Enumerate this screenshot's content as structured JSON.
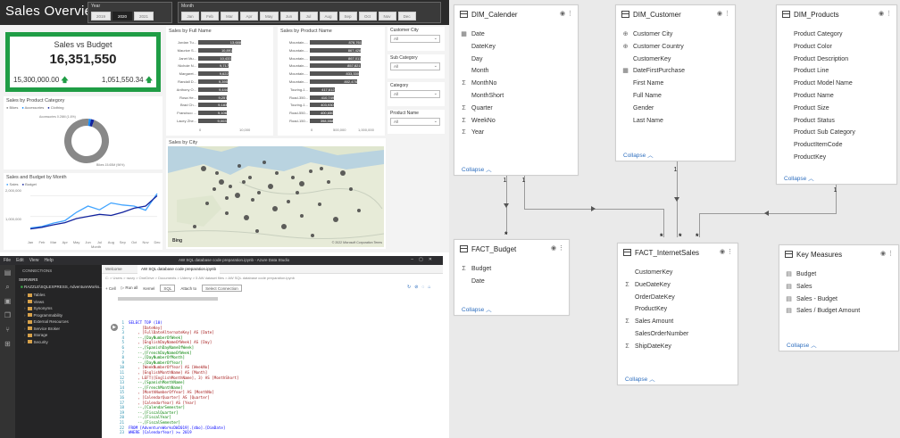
{
  "report": {
    "title": "Sales Overview",
    "year_slicer": {
      "label": "Year",
      "options": [
        "2019",
        "2020",
        "2021"
      ],
      "selected": "2020"
    },
    "month_slicer": {
      "label": "Month",
      "options": [
        "Jan",
        "Feb",
        "Mar",
        "Apr",
        "May",
        "Jun",
        "Jul",
        "Aug",
        "Sep",
        "Oct",
        "Nov",
        "Dec"
      ]
    },
    "kpi": {
      "title": "Sales vs Budget",
      "value": "16,351,550",
      "left": "15,300,000.00",
      "right": "1,051,550.34"
    },
    "sales_by_full_name": {
      "title": "Sales by Full Name",
      "axis_label": "Full Name",
      "rows": [
        {
          "label": "Jordan Tu...",
          "value": "13,688"
        },
        {
          "label": "Maurice S...",
          "value": "10,891"
        },
        {
          "label": "Janet Mu...",
          "value": "10,433"
        },
        {
          "label": "Nichole N...",
          "value": "9,717"
        },
        {
          "label": "Margaret...",
          "value": "9,622"
        },
        {
          "label": "Randall D...",
          "value": "9,395"
        },
        {
          "label": "Anthony O...",
          "value": "9,444"
        },
        {
          "label": "Rosa He...",
          "value": "9,257"
        },
        {
          "label": "Brad Ch...",
          "value": "9,183"
        },
        {
          "label": "Francisco ...",
          "value": "9,106"
        },
        {
          "label": "Lacey Zhe...",
          "value": "9,003"
        }
      ],
      "ticks": [
        "0",
        "10,000"
      ]
    },
    "sales_by_product": {
      "title": "Sales by Product Name",
      "axis_label": "Product Name",
      "rows": [
        {
          "label": "Mountain-...",
          "value": "878,761"
        },
        {
          "label": "Mountain-...",
          "value": "867,428"
        },
        {
          "label": "Mountain-...",
          "value": "867,011"
        },
        {
          "label": "Mountain-...",
          "value": "857,821"
        },
        {
          "label": "Mountain-...",
          "value": "833,330"
        },
        {
          "label": "Mountain-...",
          "value": "802,476"
        },
        {
          "label": "Touring-1...",
          "value": "417,612"
        },
        {
          "label": "Road-350...",
          "value": "410,749"
        },
        {
          "label": "Touring-1...",
          "value": "403,930"
        },
        {
          "label": "Road-550...",
          "value": "400,650"
        },
        {
          "label": "Road-150...",
          "value": "398,558"
        }
      ],
      "ticks": [
        "0",
        "500,000",
        "1,000,000"
      ]
    },
    "filters": [
      {
        "label": "Customer City",
        "value": "All"
      },
      {
        "label": "Sub Category",
        "value": "All"
      },
      {
        "label": "Category",
        "value": "All"
      },
      {
        "label": "Product Name",
        "value": "All"
      }
    ],
    "donut": {
      "title": "Sales by Product Category",
      "legend": [
        "Bikes",
        "Accessories",
        "Clothing"
      ],
      "label_top": "Accessories 0.26M (1.6%)",
      "label_bottom": "Bikes 15.65M (96%)",
      "colors": [
        "#888888",
        "#118dff",
        "#12239e"
      ],
      "shares": [
        0.96,
        0.016,
        0.024
      ]
    },
    "map": {
      "title": "Sales by City",
      "logo": "Bing",
      "copyright": "© 2022 Microsoft Corporation Terms"
    },
    "line": {
      "title": "Sales and Budget by Month",
      "legend": [
        "Sales",
        "Budget"
      ],
      "xaxis_label": "Month",
      "y_ticks": [
        "2,000,000",
        "1,000,000"
      ],
      "chart_data": {
        "type": "line",
        "categories": [
          "Jan",
          "Feb",
          "Mar",
          "Apr",
          "May",
          "Jun",
          "Jul",
          "Aug",
          "Sep",
          "Oct",
          "Nov",
          "Dec"
        ],
        "ylim": [
          0,
          2400000
        ],
        "series": [
          {
            "name": "Sales",
            "color": "#41a4ff",
            "values": [
              450000,
              520000,
              680000,
              800000,
              1200000,
              1500000,
              1320000,
              1650000,
              1550000,
              1500000,
              1300000,
              2100000
            ]
          },
          {
            "name": "Budget",
            "color": "#12239e",
            "values": [
              400000,
              480000,
              600000,
              700000,
              900000,
              1000000,
              1100000,
              1050000,
              1200000,
              1400000,
              1500000,
              2000000
            ]
          }
        ]
      }
    }
  },
  "ads": {
    "menu": [
      "File",
      "Edit",
      "View",
      "Help"
    ],
    "window_title": "AW SQL database code preparation.ipynb - Azure Data Studio",
    "connections_label": "CONNECTIONS",
    "servers_label": "SERVERS",
    "server_name": "RAZZLE\\SQLEXPRESS, AdventureWorks...",
    "tree": [
      "Tables",
      "Views",
      "Synonyms",
      "Programmability",
      "External Resources",
      "Service Broker",
      "Storage",
      "Security"
    ],
    "tabs": [
      "Welcome",
      "AW SQL database code preparation.ipynb"
    ],
    "breadcrumb": "C: > Users > razzy > OneDrive > Documents > Udemy > 5 AW dataset files > AW SQL database code preparation.ipynb",
    "toolbar": {
      "cell": "+ Cell",
      "run": "Run all",
      "kernel_label": "Kernel",
      "kernel": "SQL",
      "attach_label": "Attach to",
      "attach": "Select Connection"
    },
    "code": [
      {
        "n": "1",
        "t": "SELECT TOP (10)"
      },
      {
        "n": "2",
        "t": "      [DateKey]"
      },
      {
        "n": "3",
        "t": "    , [FullDateAlternateKey] AS [Date]"
      },
      {
        "n": "4",
        "t": "    --,[DayNumberOfWeek]"
      },
      {
        "n": "5",
        "t": "    , [EnglishDayNameOfWeek] AS [Day]"
      },
      {
        "n": "6",
        "t": "    --,[SpanishDayNameOfWeek]"
      },
      {
        "n": "7",
        "t": "    --,[FrenchDayNameOfWeek]"
      },
      {
        "n": "8",
        "t": "    --,[DayNumberOfMonth]"
      },
      {
        "n": "9",
        "t": "    --,[DayNumberOfYear]"
      },
      {
        "n": "10",
        "t": "    , [WeekNumberOfYear] AS [WeekNo]"
      },
      {
        "n": "11",
        "t": "    , [EnglishMonthName] AS [Month]"
      },
      {
        "n": "12",
        "t": "    , LEFT([EnglishMonthName], 3) AS [MonthShort]"
      },
      {
        "n": "13",
        "t": "    --,[SpanishMonthName]"
      },
      {
        "n": "14",
        "t": "    --,[FrenchMonthName]"
      },
      {
        "n": "15",
        "t": "    , [MonthNumberOfYear] AS [MonthNo]"
      },
      {
        "n": "16",
        "t": "    , [CalendarQuarter] AS [Quarter]"
      },
      {
        "n": "17",
        "t": "    , [CalendarYear] AS [Year]"
      },
      {
        "n": "18",
        "t": "    --,[CalendarSemester]"
      },
      {
        "n": "19",
        "t": "    --,[FiscalQuarter]"
      },
      {
        "n": "20",
        "t": "    --,[FiscalYear]"
      },
      {
        "n": "21",
        "t": "    --,[FiscalSemester]"
      },
      {
        "n": "22",
        "t": "FROM [AdventureWorksDW2019].[dbo].[DimDate]"
      },
      {
        "n": "23",
        "t": "WHERE [CalendarYear] >= 2019"
      }
    ]
  },
  "model": {
    "collapse_label": "Collapse",
    "tables": {
      "dim_calendar": {
        "title": "DIM_Calender",
        "fields": [
          {
            "icon": "calendar",
            "name": "Date"
          },
          {
            "icon": "",
            "name": "DateKey"
          },
          {
            "icon": "",
            "name": "Day"
          },
          {
            "icon": "",
            "name": "Month"
          },
          {
            "icon": "sigma",
            "name": "MonthNo"
          },
          {
            "icon": "",
            "name": "MonthShort"
          },
          {
            "icon": "sigma",
            "name": "Quarter"
          },
          {
            "icon": "sigma",
            "name": "WeekNo"
          },
          {
            "icon": "sigma",
            "name": "Year"
          }
        ]
      },
      "dim_customer": {
        "title": "DIM_Customer",
        "fields": [
          {
            "icon": "globe",
            "name": "Customer City"
          },
          {
            "icon": "globe",
            "name": "Customer Country"
          },
          {
            "icon": "",
            "name": "CustomerKey"
          },
          {
            "icon": "calendar",
            "name": "DateFirstPurchase"
          },
          {
            "icon": "",
            "name": "First Name"
          },
          {
            "icon": "",
            "name": "Full Name"
          },
          {
            "icon": "",
            "name": "Gender"
          },
          {
            "icon": "",
            "name": "Last Name"
          }
        ]
      },
      "dim_products": {
        "title": "DIM_Products",
        "fields": [
          {
            "icon": "",
            "name": "Product Category"
          },
          {
            "icon": "",
            "name": "Product Color"
          },
          {
            "icon": "",
            "name": "Product Description"
          },
          {
            "icon": "",
            "name": "Product Line"
          },
          {
            "icon": "",
            "name": "Product Model Name"
          },
          {
            "icon": "",
            "name": "Product Name"
          },
          {
            "icon": "",
            "name": "Product Size"
          },
          {
            "icon": "",
            "name": "Product Status"
          },
          {
            "icon": "",
            "name": "Product Sub Category"
          },
          {
            "icon": "",
            "name": "ProductItemCode"
          },
          {
            "icon": "",
            "name": "ProductKey"
          }
        ]
      },
      "fact_budget": {
        "title": "FACT_Budget",
        "fields": [
          {
            "icon": "sigma",
            "name": "Budget"
          },
          {
            "icon": "",
            "name": "Date"
          }
        ]
      },
      "fact_internet_sales": {
        "title": "FACT_InternetSales",
        "fields": [
          {
            "icon": "",
            "name": "CustomerKey"
          },
          {
            "icon": "sigma",
            "name": "DueDateKey"
          },
          {
            "icon": "",
            "name": "OrderDateKey"
          },
          {
            "icon": "",
            "name": "ProductKey"
          },
          {
            "icon": "sigma",
            "name": "Sales Amount"
          },
          {
            "icon": "",
            "name": "SalesOrderNumber"
          },
          {
            "icon": "sigma",
            "name": "ShipDateKey"
          }
        ]
      },
      "key_measures": {
        "title": "Key Measures",
        "fields": [
          {
            "icon": "measure",
            "name": "Budget"
          },
          {
            "icon": "measure",
            "name": "Sales"
          },
          {
            "icon": "measure",
            "name": "Sales - Budget"
          },
          {
            "icon": "measure",
            "name": "Sales / Budget Amount"
          }
        ]
      }
    },
    "rel_one": "1",
    "rel_many": "*"
  }
}
